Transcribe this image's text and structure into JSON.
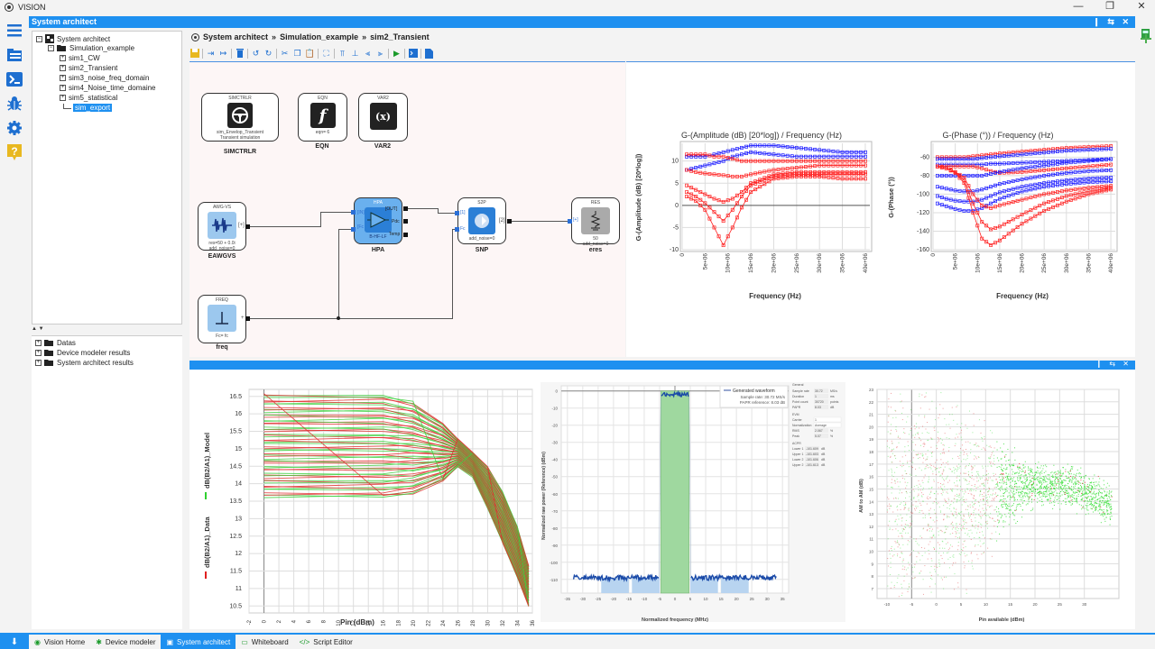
{
  "window": {
    "title": "VISION",
    "controls": {
      "minimize": "—",
      "maximize": "❐",
      "close": "✕"
    }
  },
  "left_sidebar": {
    "icons": [
      "menu-icon",
      "project-folder-icon",
      "terminal-icon",
      "debug-bug-icon",
      "settings-gear-icon",
      "help-icon"
    ]
  },
  "panel": {
    "title": "System architect",
    "controls": "❙ ⇆ ✕"
  },
  "project_tree": {
    "root": "System architect",
    "folder": "Simulation_example",
    "items": [
      "sim1_CW",
      "sim2_Transient",
      "sim3_noise_freq_domain",
      "sim4_Noise_time_domaine",
      "sim5_statistical",
      "sim_export"
    ],
    "selected": "sim_export"
  },
  "results_tree": {
    "items": [
      "Datas",
      "Device modeler results",
      "System architect results"
    ]
  },
  "splitter_arrows": "▲ ▼",
  "breadcrumb": {
    "items": [
      "System architect",
      "Simulation_example",
      "sim2_Transient"
    ],
    "separator": "»"
  },
  "toolbar": {
    "buttons": [
      "save",
      "import",
      "export",
      "delete",
      "undo",
      "redo",
      "cut",
      "copy",
      "paste",
      "fit",
      "align-top",
      "align-center",
      "distribute-h",
      "distribute-v",
      "run",
      "console",
      "export-doc"
    ]
  },
  "schematic": {
    "blocks": [
      {
        "id": "simctrlr",
        "header": "SIMCTRLR",
        "sub1": "sim_Envelop_Transient",
        "sub2": "Transient simulation",
        "label": "SIMCTRLR"
      },
      {
        "id": "eqn",
        "header": "EQN",
        "sub1": "eqn= 6",
        "label": "EQN"
      },
      {
        "id": "var2",
        "header": "VAR2",
        "icon": "(x)",
        "label": "VAR2"
      },
      {
        "id": "awgvs",
        "header": "AWG-VS",
        "sub1": "res=50 + 0.0i",
        "sub2": "add_noise=0",
        "port": "[+]",
        "label": "EAWGVS"
      },
      {
        "id": "hpa",
        "header": "HPA",
        "sub1": "B-HF-LF",
        "ports_in": [
          "[IN]",
          "[Fc"
        ],
        "ports_out": [
          "[OUT]",
          "Pdc",
          "Temp"
        ],
        "label": "HPA"
      },
      {
        "id": "s2p",
        "header": "S2P",
        "sub1": "add_noise=0",
        "ports_in": [
          "[1]",
          "Fc"
        ],
        "port_out": "[2]",
        "label": "SNP"
      },
      {
        "id": "res",
        "header": "RES",
        "sub1": "50",
        "sub2": "add_noise=0",
        "port": "[+]",
        "label": "eres"
      },
      {
        "id": "freq",
        "header": "FREQ",
        "sub1": "Fc= fc",
        "port": "+",
        "label": "freq"
      }
    ]
  },
  "chart_data": [
    {
      "type": "line",
      "title": "G-(Amplitude (dB) [20*log]) / Frequency (Hz)",
      "xlabel": "Frequency (Hz)",
      "ylabel": "G-(Amplitude (dB) [20*log])",
      "x_ticks": [
        "0",
        "5e+06",
        "10e+06",
        "15e+06",
        "20e+06",
        "25e+06",
        "30e+06",
        "35e+06",
        "40e+06"
      ],
      "y_ticks": [
        "10",
        "5",
        "0",
        "-5",
        "-10"
      ],
      "ylim": [
        -10,
        14
      ],
      "grid": true,
      "x": [
        1000000.0,
        3000000.0,
        5000000.0,
        7000000.0,
        9000000.0,
        11000000.0,
        13000000.0,
        15000000.0,
        20000000.0,
        25000000.0,
        30000000.0,
        35000000.0,
        40000000.0
      ],
      "series": [
        {
          "name": "blue upper",
          "color": "#1a1aff",
          "values": [
            11,
            11,
            11,
            11.5,
            12,
            12.5,
            13,
            13.5,
            13.5,
            13,
            12.5,
            12,
            12
          ]
        },
        {
          "name": "blue mid",
          "color": "#1a1aff",
          "values": [
            8,
            8.5,
            9,
            9.5,
            10,
            11,
            11.5,
            12,
            11.5,
            11,
            11,
            11,
            11
          ]
        },
        {
          "name": "red flat",
          "color": "#ff2020",
          "values": [
            11.5,
            11.5,
            11.5,
            11,
            11,
            10.5,
            10,
            10,
            10,
            10,
            10,
            10,
            10
          ]
        },
        {
          "name": "red 2",
          "color": "#ff2020",
          "values": [
            8,
            7.5,
            7.2,
            7,
            6.8,
            6.5,
            6.5,
            7,
            8,
            8.5,
            9,
            9,
            9
          ]
        },
        {
          "name": "red x",
          "color": "#ff2020",
          "values": [
            4.5,
            3.5,
            2.5,
            1.5,
            0.8,
            1.5,
            3,
            5,
            7,
            7.5,
            7.5,
            7.5,
            7.5
          ]
        },
        {
          "name": "red square",
          "color": "#ff2020",
          "values": [
            3,
            2,
            0.5,
            -1.5,
            -3.5,
            -1,
            2,
            4.5,
            6.5,
            7,
            7,
            7,
            7
          ]
        },
        {
          "name": "red diamond",
          "color": "#ff2020",
          "values": [
            2,
            1,
            -1,
            -5,
            -9,
            -5,
            -0.5,
            3,
            6,
            6.5,
            6.5,
            6,
            6
          ]
        }
      ]
    },
    {
      "type": "line",
      "title": "G-(Phase (°)) / Frequency (Hz)",
      "xlabel": "Frequency (Hz)",
      "ylabel": "G-(Phase (°))",
      "x_ticks": [
        "0",
        "5e+06",
        "10e+06",
        "15e+06",
        "20e+06",
        "25e+06",
        "30e+06",
        "35e+06",
        "40e+06"
      ],
      "y_ticks": [
        "-60",
        "-80",
        "-100",
        "-120",
        "-140",
        "-160"
      ],
      "ylim": [
        -160,
        -45
      ],
      "grid": true,
      "x": [
        1000000.0,
        3000000.0,
        5000000.0,
        7000000.0,
        9000000.0,
        11000000.0,
        13000000.0,
        15000000.0,
        20000000.0,
        25000000.0,
        30000000.0,
        35000000.0,
        40000000.0
      ],
      "series": [
        {
          "name": "red top",
          "color": "#ff2020",
          "values": [
            -60,
            -60,
            -60,
            -60,
            -59,
            -58,
            -57,
            -56,
            -54,
            -52,
            -50,
            -49,
            -48
          ]
        },
        {
          "name": "blue top",
          "color": "#1a1aff",
          "values": [
            -62,
            -62,
            -62,
            -62,
            -62,
            -61,
            -60,
            -59,
            -57,
            -55,
            -53,
            -52,
            -51
          ]
        },
        {
          "name": "blue 2",
          "color": "#1a1aff",
          "values": [
            -68,
            -68,
            -68,
            -68,
            -68,
            -68,
            -67,
            -67,
            -66,
            -65,
            -64,
            -63,
            -62
          ]
        },
        {
          "name": "red 2",
          "color": "#ff2020",
          "values": [
            -70,
            -70,
            -70,
            -70,
            -70,
            -72,
            -75,
            -77,
            -76,
            -74,
            -72,
            -70,
            -68
          ]
        },
        {
          "name": "blue 3",
          "color": "#1a1aff",
          "values": [
            -80,
            -80,
            -80,
            -80,
            -80,
            -80,
            -78,
            -76,
            -72,
            -69,
            -66,
            -64,
            -62
          ]
        },
        {
          "name": "blue x",
          "color": "#1a1aff",
          "values": [
            -92,
            -94,
            -96,
            -97,
            -97,
            -95,
            -92,
            -89,
            -84,
            -80,
            -77,
            -75,
            -74
          ]
        },
        {
          "name": "blue square",
          "color": "#1a1aff",
          "values": [
            -102,
            -105,
            -107,
            -108,
            -108,
            -106,
            -102,
            -98,
            -92,
            -88,
            -85,
            -83,
            -82
          ]
        },
        {
          "name": "blue diamond",
          "color": "#1a1aff",
          "values": [
            -110,
            -113,
            -116,
            -118,
            -118,
            -115,
            -110,
            -105,
            -97,
            -92,
            -89,
            -87,
            -86
          ]
        },
        {
          "name": "red x",
          "color": "#ff2020",
          "values": [
            -70,
            -72,
            -76,
            -82,
            -100,
            -112,
            -115,
            -112,
            -106,
            -100,
            -96,
            -93,
            -91
          ]
        },
        {
          "name": "red square",
          "color": "#ff2020",
          "values": [
            -70,
            -72,
            -76,
            -85,
            -110,
            -130,
            -138,
            -135,
            -122,
            -110,
            -102,
            -97,
            -93
          ]
        },
        {
          "name": "red diamond",
          "color": "#ff2020",
          "values": [
            -70,
            -72,
            -77,
            -88,
            -120,
            -148,
            -155,
            -150,
            -132,
            -118,
            -108,
            -100,
            -95
          ]
        }
      ]
    },
    {
      "type": "line",
      "title": "",
      "xlabel": "Pin (dBm)",
      "ylabel": "dB(B2/A1)_Data, dB(B2/A1)_Model",
      "legend": [
        {
          "name": "dB(B2/A1)_Data",
          "color": "#e02020"
        },
        {
          "name": "dB(B2/A1)_Model",
          "color": "#30d030"
        }
      ],
      "x_ticks": [
        "-2",
        "0",
        "2",
        "4",
        "6",
        "8",
        "10",
        "12",
        "14",
        "16",
        "18",
        "20",
        "22",
        "24",
        "26",
        "28",
        "30",
        "32",
        "34",
        "36"
      ],
      "y_ticks": [
        "16.5",
        "16",
        "15.5",
        "15",
        "14.5",
        "14",
        "13.5",
        "13",
        "12.5",
        "12",
        "11.5",
        "11",
        "10.5"
      ],
      "xlim": [
        -2,
        36
      ],
      "ylim": [
        10.3,
        16.7
      ],
      "grid": true,
      "envelope": {
        "x": [
          0,
          16,
          20,
          24,
          26,
          28,
          30,
          32,
          34,
          35.5
        ],
        "upper": [
          16.6,
          16.6,
          16.4,
          15.8,
          15.3,
          14.9,
          14.5,
          13.8,
          12.8,
          11.7
        ],
        "lower": [
          13.6,
          13.6,
          13.7,
          14.1,
          14.5,
          14.2,
          13.3,
          12.3,
          11.3,
          10.5
        ]
      }
    },
    {
      "type": "line",
      "title": "",
      "xlabel": "Normalized frequency (MHz)",
      "ylabel": "Normalized raw power (Reference) (dBm)",
      "legend": [
        {
          "name": "Generated waveform",
          "color": "#3050a0"
        }
      ],
      "annotations": [
        "Sample rate: 30.72 MS/s",
        "PAPR reference: 8.03 dB"
      ],
      "y_ticks": [
        "0",
        "-10",
        "-20",
        "-30",
        "-40",
        "-50",
        "-60",
        "-70",
        "-80",
        "-90",
        "-100",
        "-110"
      ],
      "x_ticks": [
        "-35",
        "-30",
        "-25",
        "-20",
        "-15",
        "-10",
        "-5",
        "0",
        "5",
        "10",
        "15",
        "20",
        "25",
        "30",
        "35"
      ],
      "ylim": [
        -118,
        3
      ],
      "xlim": [
        -37,
        37
      ],
      "grid": true,
      "band": {
        "from": -4.6,
        "to": 4.6,
        "level": -2,
        "color": "#9fd89f"
      },
      "noise_floor": -109,
      "acp_bands": [
        [
          -24,
          -15
        ],
        [
          -14,
          -5
        ],
        [
          5,
          14
        ],
        [
          15,
          24
        ]
      ],
      "settings": {
        "general": {
          "sample_rate": "30.72",
          "sample_rate_unit": "MS/s",
          "duration": "1",
          "duration_unit": "ms",
          "point_count": "30720",
          "point_unit": "points",
          "papr": "8.03",
          "papr_unit": "dB"
        },
        "evm": {
          "carrier": "1",
          "normalization": "Average",
          "rms": "2.067",
          "peak": "5.07"
        },
        "acpr": {
          "lower1": "-101.609",
          "upper1": "-101.603",
          "lower2": "-101.606",
          "upper2": "-101.613"
        }
      }
    },
    {
      "type": "scatter",
      "title": "",
      "xlabel": "Pin available (dBm)",
      "ylabel": "AM to AM (dB)",
      "x_ticks": [
        "-10",
        "-5",
        "0",
        "5",
        "10",
        "15",
        "20",
        "25",
        "30"
      ],
      "y_ticks": [
        "23",
        "22",
        "21",
        "20",
        "19",
        "18",
        "17",
        "16",
        "15",
        "14",
        "13",
        "12",
        "11",
        "10",
        "9",
        "8",
        "7"
      ],
      "xlim": [
        -12,
        37
      ],
      "ylim": [
        6.2,
        23
      ],
      "grid": true,
      "series": [
        {
          "name": "data",
          "color": "#e03030"
        },
        {
          "name": "model",
          "color": "#30e030"
        }
      ]
    }
  ],
  "bottom_panel": {
    "controls": "❙ ⇆ ✕"
  },
  "taskbar": {
    "pin": "⬇",
    "tabs": [
      {
        "label": "Vision Home",
        "icon": "eye-icon",
        "active": false
      },
      {
        "label": "Device modeler",
        "icon": "chip-icon",
        "active": false
      },
      {
        "label": "System architect",
        "icon": "system-architect-icon",
        "active": true
      },
      {
        "label": "Whiteboard",
        "icon": "whiteboard-icon",
        "active": false
      },
      {
        "label": "Script Editor",
        "icon": "code-icon",
        "active": false
      }
    ]
  }
}
